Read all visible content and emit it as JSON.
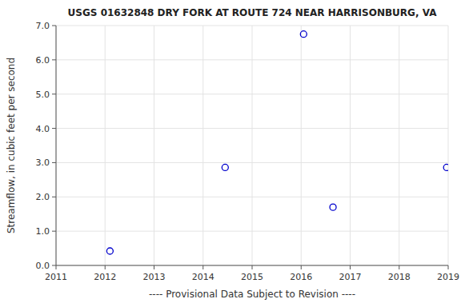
{
  "chart_data": {
    "type": "scatter",
    "title": "USGS 01632848 DRY FORK AT ROUTE 724 NEAR HARRISONBURG, VA",
    "ylabel": "Streamflow, in cubic feet per second",
    "xlabel": "---- Provisional Data Subject to Revision ----",
    "x": [
      2012.1,
      2014.45,
      2016.05,
      2016.65,
      2018.97
    ],
    "values": [
      0.42,
      2.86,
      6.75,
      1.7,
      2.86
    ],
    "color": "#0000cc",
    "marker": "circle",
    "xlim": [
      2011,
      2019
    ],
    "ylim": [
      0.0,
      7.0
    ],
    "xticks": [
      2011,
      2012,
      2013,
      2014,
      2015,
      2016,
      2017,
      2018,
      2019
    ],
    "yticks": [
      {
        "value": 0.0,
        "label": "0.0"
      },
      {
        "value": 1.0,
        "label": "1.0"
      },
      {
        "value": 2.0,
        "label": "2.0"
      },
      {
        "value": 3.0,
        "label": "3.0"
      },
      {
        "value": 4.0,
        "label": "4.0"
      },
      {
        "value": 5.0,
        "label": "5.0"
      },
      {
        "value": 6.0,
        "label": "6.0"
      },
      {
        "value": 7.0,
        "label": "7.0"
      }
    ],
    "grid": true
  }
}
